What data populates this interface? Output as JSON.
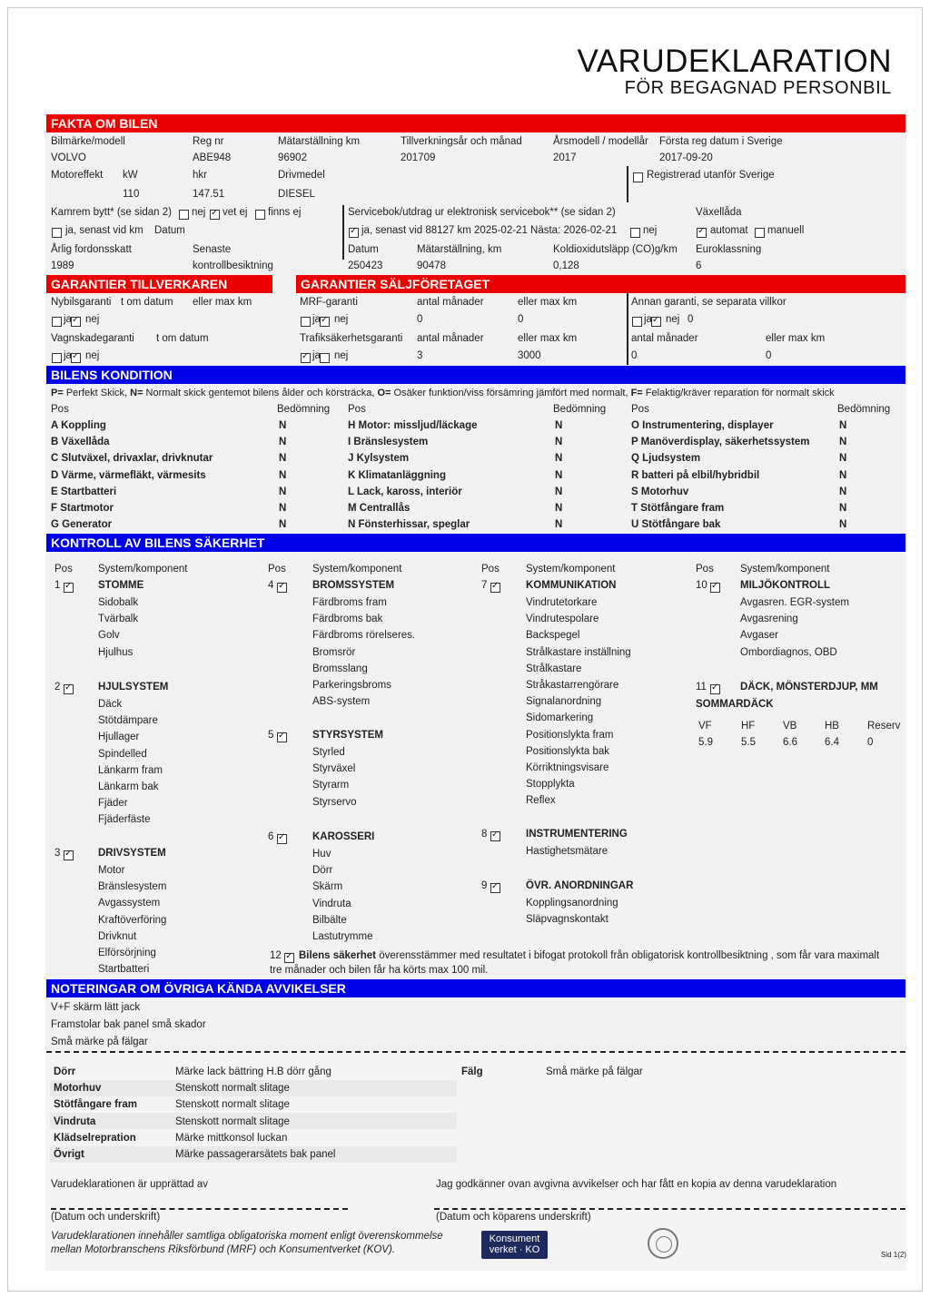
{
  "title": "VARUDEKLARATION",
  "subtitle": "FÖR BEGAGNAD PERSONBIL",
  "colors": {
    "red_header": "#ee0000",
    "blue_header": "#0000e8"
  },
  "fakta": {
    "header": "FAKTA OM BILEN",
    "labels": {
      "model": "Bilmärke/modell",
      "reg": "Reg nr",
      "odo": "Mätarställning km",
      "mfg": "Tillverkningsår och månad",
      "year": "Årsmodell / modellår",
      "firstreg": "Första reg datum i Sverige",
      "power": "Motoreffekt",
      "kw": "kW",
      "hkr": "hkr",
      "fuel": "Drivmedel",
      "regabroad": "Registrerad utanför Sverige",
      "kamrem": "Kamrem bytt* (se sidan 2)",
      "kamrem_nej": "nej",
      "kamrem_vetej": "vet ej",
      "kamrem_finnsej": "finns ej",
      "kamrem_ja": "ja, senast vid km",
      "kamrem_datum": "Datum",
      "service": "Servicebok/utdrag ur elektronisk servicebok** (se sidan 2)",
      "service_ja": "ja, senast vid 88127 km  2025-02-21 Nästa: 2026-02-21",
      "service_nej": "nej",
      "gear": "Växellåda",
      "gear_auto": "automat",
      "gear_manual": "manuell",
      "tax": "Årlig fordonsskatt",
      "senaste": "Senaste",
      "kontroll": "kontrollbesiktning",
      "insp_date": "Datum",
      "insp_odo": "Mätarställning, km",
      "co2": "Koldioxidutsläpp (CO)g/km",
      "euro": "Euroklassning"
    },
    "values": {
      "model": "VOLVO",
      "reg": "ABE948",
      "odo": "96902",
      "mfg": "201709",
      "year": "2017",
      "firstreg": "2017-09-20",
      "kw": "110",
      "hkr": "147.51",
      "fuel": "DIESEL",
      "tax": "1989",
      "insp_date": "250423",
      "insp_odo": "90478",
      "co2": "0,128",
      "euro": "6"
    },
    "checks": {
      "regabroad": false,
      "kamrem_nej": false,
      "kamrem_vetej": true,
      "kamrem_finnsej": false,
      "kamrem_ja": false,
      "service_ja": true,
      "service_nej": false,
      "gear_auto": true,
      "gear_manual": false
    }
  },
  "garantier": {
    "tillverkaren_header": "GARANTIER TILLVERKAREN",
    "saljforetaget_header": "GARANTIER SÄLJFÖRETAGET",
    "labels": {
      "nybil": "Nybilsgaranti",
      "tom_datum": "t om datum",
      "eller_max_km": "eller max km",
      "vagnskada": "Vagnskadegaranti",
      "mrf": "MRF-garanti",
      "antal_manader": "antal månader",
      "trafik": "Trafiksäkerhetsgaranti",
      "annan": "Annan garanti, se separata villkor",
      "ja": "ja",
      "nej": "nej"
    },
    "values": {
      "mrf_months": "0",
      "mrf_km": "0",
      "trafik_months": "3",
      "trafik_km": "3000",
      "annan_nej_value": "0",
      "annan_months": "0",
      "annan_km": "0"
    },
    "checks": {
      "nybil_ja": false,
      "nybil_nej": true,
      "vagnskada_ja": false,
      "vagnskada_nej": true,
      "mrf_ja": false,
      "mrf_nej": true,
      "trafik_ja": true,
      "trafik_nej": false,
      "annan_ja": false,
      "annan_nej": true
    }
  },
  "kondition": {
    "header": "BILENS KONDITION",
    "legend": [
      {
        "key": "P=",
        "text": " Perfekt Skick, "
      },
      {
        "key": "N=",
        "text": " Normalt skick gentemot bilens ålder och körsträcka, "
      },
      {
        "key": "O=",
        "text": " Osäker funktion/viss försämring jämfört med normalt, "
      },
      {
        "key": "F=",
        "text": " Felaktig/kräver reparation för normalt skick"
      }
    ],
    "pos_label": "Pos",
    "rating_label": "Bedömning",
    "columns": [
      [
        {
          "pos": "A Koppling",
          "rating": "N"
        },
        {
          "pos": "B Växellåda",
          "rating": "N"
        },
        {
          "pos": "C Slutväxel, drivaxlar, drivknutar",
          "rating": "N"
        },
        {
          "pos": "D Värme, värmefläkt, värmesits",
          "rating": "N"
        },
        {
          "pos": "E Startbatteri",
          "rating": "N"
        },
        {
          "pos": "F Startmotor",
          "rating": "N"
        },
        {
          "pos": "G Generator",
          "rating": "N"
        }
      ],
      [
        {
          "pos": "H Motor: missljud/läckage",
          "rating": "N"
        },
        {
          "pos": "I Bränslesystem",
          "rating": "N"
        },
        {
          "pos": "J Kylsystem",
          "rating": "N"
        },
        {
          "pos": "K Klimatanläggning",
          "rating": "N"
        },
        {
          "pos": "L Lack, kaross, interiör",
          "rating": "N"
        },
        {
          "pos": "M Centrallås",
          "rating": "N"
        },
        {
          "pos": "N Fönsterhissar, speglar",
          "rating": "N"
        }
      ],
      [
        {
          "pos": "O Instrumentering, displayer",
          "rating": "N"
        },
        {
          "pos": "P Manöverdisplay, säkerhetssystem",
          "rating": "N"
        },
        {
          "pos": "Q Ljudsystem",
          "rating": "N"
        },
        {
          "pos": "R batteri på elbil/hybridbil",
          "rating": "N"
        },
        {
          "pos": "S Motorhuv",
          "rating": "N"
        },
        {
          "pos": "T Stötfångare fram",
          "rating": "N"
        },
        {
          "pos": "U Stötfångare bak",
          "rating": "N"
        }
      ]
    ]
  },
  "kontroll": {
    "header": "KONTROLL AV BILENS SÄKERHET",
    "pos_label": "Pos",
    "system_label": "System/komponent",
    "groups": [
      {
        "num": "1",
        "checked": true,
        "name": "STOMME",
        "items": [
          "Sidobalk",
          "Tvärbalk",
          "Golv",
          "Hjulhus"
        ]
      },
      {
        "num": "2",
        "checked": true,
        "name": "HJULSYSTEM",
        "items": [
          "Däck",
          "Stötdämpare",
          "Hjullager",
          "Spindelled",
          "Länkarm fram",
          "Länkarm bak",
          "Fjäder",
          "Fjäderfäste"
        ]
      },
      {
        "num": "3",
        "checked": true,
        "name": "DRIVSYSTEM",
        "items": [
          "Motor",
          "Bränslesystem",
          "Avgassystem",
          "Kraftöverföring",
          "Drivknut",
          "Elförsörjning",
          "Startbatteri"
        ]
      },
      {
        "num": "4",
        "checked": true,
        "name": "BROMSSYSTEM",
        "items": [
          "Färdbroms fram",
          "Färdbroms bak",
          "Färdbroms rörelseres.",
          "Bromsrör",
          "Bromsslang",
          "Parkeringsbroms",
          "ABS-system"
        ]
      },
      {
        "num": "5",
        "checked": true,
        "name": "STYRSYSTEM",
        "items": [
          "Styrled",
          "Styrväxel",
          "Styrarm",
          "Styrservo"
        ]
      },
      {
        "num": "6",
        "checked": true,
        "name": "KAROSSERI",
        "items": [
          "Huv",
          "Dörr",
          "Skärm",
          "Vindruta",
          "Bilbälte",
          "Lastutrymme"
        ]
      },
      {
        "num": "7",
        "checked": true,
        "name": "KOMMUNIKATION",
        "items": [
          "Vindrutetorkare",
          "Vindrutespolare",
          "Backspegel",
          "Strålkastare inställning",
          "Strålkastare",
          "Stråkastarrengörare",
          "Signalanordning",
          "Sidomarkering",
          "Positionslykta fram",
          "Positionslykta bak",
          "Körriktningsvisare",
          "Stopplykta",
          "Reflex"
        ]
      },
      {
        "num": "8",
        "checked": true,
        "name": "INSTRUMENTERING",
        "items": [
          "Hastighetsmätare"
        ]
      },
      {
        "num": "9",
        "checked": true,
        "name": "ÖVR. ANORDNINGAR",
        "items": [
          "Kopplingsanordning",
          "Släpvagnskontakt"
        ]
      },
      {
        "num": "10",
        "checked": true,
        "name": "MILJÖKONTROLL",
        "items": [
          "Avgasren. EGR-system",
          "Avgasrening",
          "Avgaser",
          "Ombordiagnos, OBD"
        ]
      },
      {
        "num": "11",
        "checked": true,
        "name": "DÄCK, MÖNSTERDJUP, MM",
        "items": []
      }
    ],
    "tires": {
      "season": "SOMMARDÄCK",
      "headers": [
        "VF",
        "HF",
        "VB",
        "HB",
        "Reserv"
      ],
      "values": [
        "5.9",
        "5.5",
        "6.6",
        "6.4",
        "0"
      ]
    },
    "item12": {
      "num": "12",
      "checked": true,
      "bold": "Bilens säkerhet",
      "text": " överensstämmer med resultatet i bifogat protokoll från obligatorisk kontrollbesiktning , som får vara maximalt",
      "text2": "tre månader och bilen får ha körts max 100 mil."
    }
  },
  "noteringar": {
    "header": "NOTERINGAR OM ÖVRIGA KÄNDA AVVIKELSER",
    "notes": [
      "V+F skärm lätt jack",
      "Framstolar bak panel små skador",
      "Små märke på fälgar"
    ],
    "damages": [
      {
        "part": "Dörr",
        "desc": "Märke lack bättring H.B dörr gång"
      },
      {
        "part": "Motorhuv",
        "desc": "Stenskott normalt slitage"
      },
      {
        "part": "Stötfångare fram",
        "desc": "Stenskott normalt slitage"
      },
      {
        "part": "Vindruta",
        "desc": "Stenskott normalt slitage"
      },
      {
        "part": "Klädselrepration",
        "desc": "Märke mittkonsol luckan"
      },
      {
        "part": "Övrigt",
        "desc": "Märke passagerarsätets bak panel"
      }
    ],
    "damages_right": [
      {
        "part": "Fälg",
        "desc": "Små märke på fälgar"
      }
    ]
  },
  "signatures": {
    "seller_label": "Varudeklarationen är upprättad av",
    "seller_caption": "(Datum och underskrift)",
    "buyer_label": "Jag godkänner ovan avgivna avvikelser och har fått en kopia av denna varudeklaration",
    "buyer_caption": "(Datum och köparens underskrift)"
  },
  "footer": {
    "line1": "Varudeklarationen innehåller samtliga obligatoriska moment enligt överenskommelse",
    "line2": "mellan Motorbranschens Riksförbund (MRF) och Konsumentverket (KOV).",
    "logo_line1": "Konsument",
    "logo_line2": "verket · KO",
    "page": "Sid 1(2)"
  }
}
